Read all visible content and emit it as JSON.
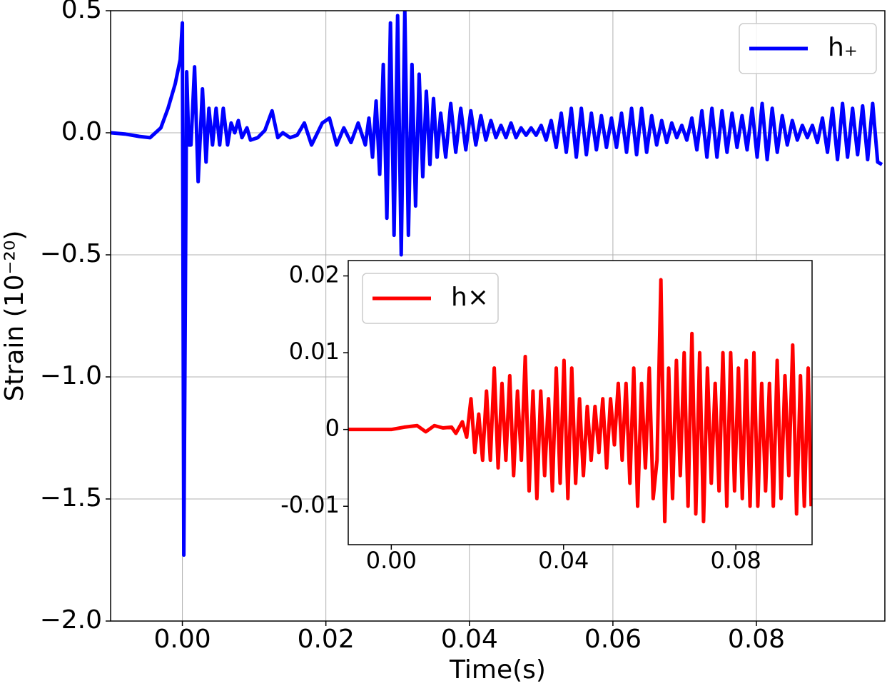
{
  "chart_data": [
    {
      "type": "line",
      "xlabel": "Time(s)",
      "ylabel": "Strain (10⁻²⁰)",
      "x": [
        -0.01,
        -0.008,
        -0.006,
        -0.0045,
        -0.003,
        -0.002,
        -0.001,
        -0.0003,
        0.0,
        0.0002,
        0.0006,
        0.0009,
        0.0012,
        0.0017,
        0.0022,
        0.0028,
        0.0033,
        0.0037,
        0.0042,
        0.0047,
        0.0052,
        0.0057,
        0.0063,
        0.0068,
        0.0073,
        0.0078,
        0.0083,
        0.009,
        0.0095,
        0.0105,
        0.0115,
        0.0125,
        0.0133,
        0.014,
        0.015,
        0.016,
        0.017,
        0.018,
        0.0185,
        0.0195,
        0.0205,
        0.0215,
        0.0225,
        0.0235,
        0.0245,
        0.0255,
        0.026,
        0.0265,
        0.027,
        0.0275,
        0.028,
        0.0285,
        0.029,
        0.0295,
        0.03,
        0.0305,
        0.031,
        0.0315,
        0.032,
        0.0325,
        0.033,
        0.0335,
        0.034,
        0.0345,
        0.035,
        0.0355,
        0.036,
        0.0367,
        0.0374,
        0.0381,
        0.0388,
        0.0395,
        0.0402,
        0.0409,
        0.0416,
        0.0423,
        0.043,
        0.0437,
        0.0444,
        0.0451,
        0.0458,
        0.0465,
        0.0472,
        0.0479,
        0.0486,
        0.0493,
        0.05,
        0.0507,
        0.0514,
        0.0521,
        0.0528,
        0.0535,
        0.0542,
        0.0549,
        0.0556,
        0.0563,
        0.057,
        0.0577,
        0.0584,
        0.0591,
        0.0598,
        0.0605,
        0.0612,
        0.0619,
        0.0626,
        0.0633,
        0.064,
        0.0647,
        0.0654,
        0.0661,
        0.0668,
        0.0675,
        0.0682,
        0.0689,
        0.0696,
        0.0703,
        0.071,
        0.0717,
        0.0724,
        0.0731,
        0.0738,
        0.0745,
        0.0752,
        0.0759,
        0.0766,
        0.0773,
        0.078,
        0.0787,
        0.0794,
        0.0801,
        0.0808,
        0.0815,
        0.0822,
        0.0829,
        0.0836,
        0.0843,
        0.085,
        0.0857,
        0.0864,
        0.0871,
        0.0878,
        0.0885,
        0.0892,
        0.0899,
        0.0906,
        0.0913,
        0.092,
        0.0927,
        0.0934,
        0.0941,
        0.0948,
        0.0955,
        0.0962,
        0.0969,
        0.0975
      ],
      "series": [
        {
          "name": "h₊",
          "color": "#0000ff",
          "values": [
            0,
            -0.005,
            -0.015,
            -0.02,
            0.02,
            0.1,
            0.2,
            0.3,
            0.45,
            -1.73,
            0.25,
            -0.05,
            -0.05,
            0.27,
            -0.2,
            0.18,
            -0.12,
            0.1,
            -0.05,
            0.1,
            -0.05,
            0.1,
            -0.05,
            0.04,
            0.0,
            0.05,
            -0.02,
            0.02,
            -0.03,
            -0.02,
            0.01,
            0.09,
            -0.02,
            0.0,
            -0.02,
            -0.01,
            0.04,
            -0.05,
            -0.02,
            0.04,
            0.06,
            -0.05,
            0.02,
            -0.04,
            0.04,
            -0.05,
            0.06,
            -0.1,
            0.13,
            -0.17,
            0.28,
            -0.35,
            0.45,
            -0.42,
            0.48,
            -0.5,
            0.5,
            -0.42,
            0.28,
            -0.3,
            0.24,
            -0.18,
            0.17,
            -0.13,
            0.14,
            -0.1,
            0.08,
            -0.1,
            0.12,
            -0.08,
            0.1,
            -0.07,
            0.09,
            -0.05,
            0.07,
            -0.03,
            0.05,
            -0.02,
            0.03,
            -0.02,
            0.04,
            -0.02,
            0.02,
            -0.01,
            0.02,
            -0.01,
            0.03,
            -0.03,
            0.05,
            -0.06,
            0.08,
            -0.08,
            0.1,
            -0.1,
            0.1,
            -0.09,
            0.08,
            -0.07,
            0.07,
            -0.06,
            0.06,
            -0.06,
            0.08,
            -0.08,
            0.1,
            -0.09,
            0.1,
            -0.08,
            0.07,
            -0.05,
            0.05,
            -0.04,
            0.04,
            -0.02,
            0.03,
            -0.03,
            0.06,
            -0.07,
            0.09,
            -0.1,
            0.1,
            -0.1,
            0.09,
            -0.08,
            0.08,
            -0.06,
            0.07,
            -0.07,
            0.1,
            -0.1,
            0.12,
            -0.11,
            0.1,
            -0.08,
            0.07,
            -0.05,
            0.05,
            -0.03,
            0.03,
            -0.02,
            0.03,
            -0.04,
            0.06,
            -0.08,
            0.1,
            -0.11,
            0.12,
            -0.1,
            0.1,
            -0.09,
            0.11,
            -0.11,
            0.12,
            -0.12,
            -0.13
          ]
        }
      ],
      "xlim": [
        -0.01,
        0.0979
      ],
      "ylim": [
        -2.0,
        0.5
      ],
      "xticks": [
        {
          "value": 0,
          "label": "0.00"
        },
        {
          "value": 0.02,
          "label": "0.02"
        },
        {
          "value": 0.04,
          "label": "0.04"
        },
        {
          "value": 0.06,
          "label": "0.06"
        },
        {
          "value": 0.08,
          "label": "0.08"
        }
      ],
      "yticks": [
        {
          "value": -2,
          "label": "−2.0"
        },
        {
          "value": -1.5,
          "label": "−1.5"
        },
        {
          "value": -1,
          "label": "−1.0"
        },
        {
          "value": -0.5,
          "label": "−0.5"
        },
        {
          "value": 0,
          "label": "0.0"
        },
        {
          "value": 0.5,
          "label": "0.5"
        }
      ],
      "grid": true,
      "legend": "upper right"
    },
    {
      "type": "line",
      "x": [
        -0.01,
        -0.005,
        0.0,
        0.003,
        0.006,
        0.008,
        0.01,
        0.012,
        0.014,
        0.015,
        0.0165,
        0.0175,
        0.0185,
        0.0194,
        0.0203,
        0.0212,
        0.0221,
        0.023,
        0.0239,
        0.0248,
        0.0257,
        0.0266,
        0.0275,
        0.0284,
        0.0293,
        0.0302,
        0.0311,
        0.032,
        0.0329,
        0.0338,
        0.0347,
        0.0356,
        0.0365,
        0.0374,
        0.0383,
        0.0392,
        0.0401,
        0.041,
        0.0419,
        0.0428,
        0.0437,
        0.0446,
        0.0455,
        0.0464,
        0.0473,
        0.0482,
        0.0491,
        0.05,
        0.0509,
        0.0518,
        0.0527,
        0.0536,
        0.0545,
        0.0554,
        0.0563,
        0.0572,
        0.0581,
        0.059,
        0.0599,
        0.0608,
        0.0617,
        0.0626,
        0.0635,
        0.0644,
        0.0653,
        0.0662,
        0.0671,
        0.068,
        0.0689,
        0.0698,
        0.0707,
        0.0716,
        0.0725,
        0.0734,
        0.0743,
        0.0752,
        0.0761,
        0.077,
        0.0779,
        0.0788,
        0.0797,
        0.0806,
        0.0815,
        0.0824,
        0.0833,
        0.0842,
        0.0851,
        0.086,
        0.0869,
        0.0878,
        0.0887,
        0.0896,
        0.0905,
        0.0914,
        0.0923,
        0.0932,
        0.0941,
        0.095,
        0.0959,
        0.0968,
        0.0975
      ],
      "series": [
        {
          "name": "h×",
          "color": "#ff0000",
          "values": [
            0,
            0,
            0,
            0.0003,
            0.0005,
            -0.0003,
            0.0005,
            0.0002,
            0.0003,
            -0.0005,
            0.001,
            -0.001,
            0.004,
            -0.003,
            0.002,
            -0.004,
            0.005,
            -0.004,
            0.008,
            -0.005,
            0.006,
            -0.004,
            0.007,
            -0.006,
            0.005,
            -0.004,
            0.0095,
            -0.008,
            0.005,
            -0.009,
            0.005,
            -0.006,
            0.004,
            -0.008,
            0.008,
            -0.007,
            0.009,
            -0.009,
            0.008,
            -0.007,
            0.004,
            -0.006,
            0.003,
            -0.004,
            0.003,
            -0.003,
            0.004,
            -0.005,
            0.004,
            -0.002,
            0.006,
            -0.004,
            0.006,
            -0.007,
            0.008,
            -0.01,
            0.006,
            -0.005,
            0.008,
            -0.009,
            -0.004,
            0.0195,
            -0.012,
            0.008,
            -0.009,
            0.009,
            -0.006,
            0.01,
            -0.01,
            0.0125,
            -0.011,
            0.01,
            -0.012,
            0.008,
            -0.007,
            0.006,
            -0.008,
            0.01,
            -0.01,
            0.01,
            -0.008,
            0.008,
            -0.009,
            0.009,
            -0.01,
            0.01,
            -0.01,
            0.006,
            -0.008,
            0.006,
            -0.01,
            0.009,
            -0.009,
            0.007,
            -0.006,
            0.011,
            -0.011,
            0.007,
            -0.01,
            0.008,
            -0.01
          ]
        }
      ],
      "xlim": [
        -0.01,
        0.0977
      ],
      "ylim": [
        -0.015,
        0.022
      ],
      "xticks": [
        {
          "value": 0,
          "label": "0.00"
        },
        {
          "value": 0.04,
          "label": "0.04"
        },
        {
          "value": 0.08,
          "label": "0.08"
        }
      ],
      "yticks": [
        -0.01,
        0,
        0.01,
        0.02
      ],
      "grid": false,
      "legend": "upper left"
    }
  ]
}
